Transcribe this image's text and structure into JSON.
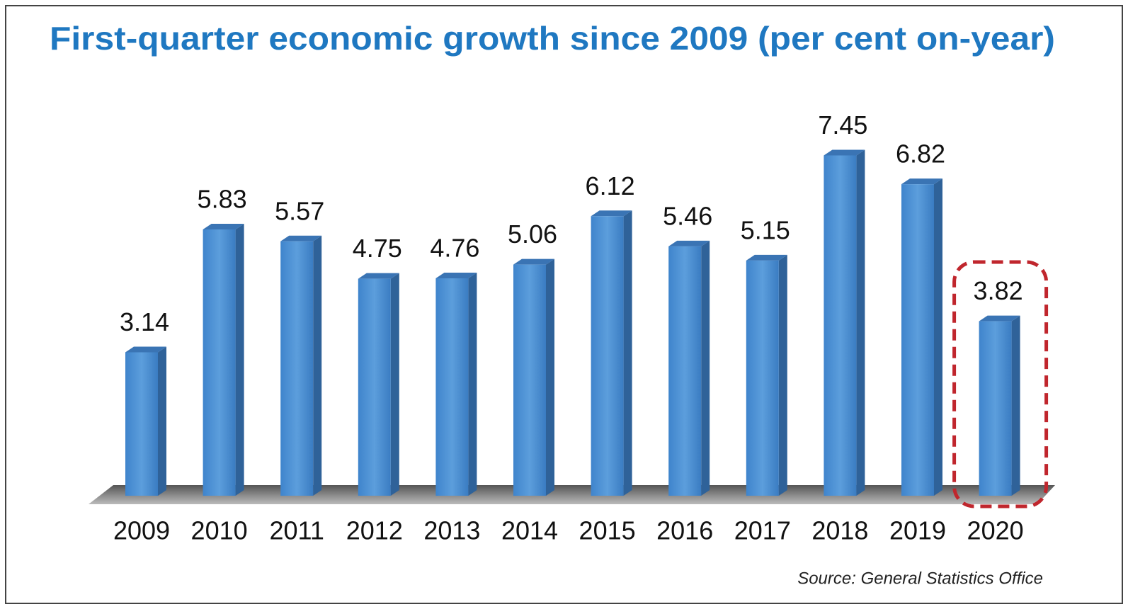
{
  "chart_data": {
    "type": "bar",
    "title": "First-quarter economic growth since 2009 (per cent on-year)",
    "categories": [
      "2009",
      "2010",
      "2011",
      "2012",
      "2013",
      "2014",
      "2015",
      "2016",
      "2017",
      "2018",
      "2019",
      "2020"
    ],
    "values": [
      3.14,
      5.83,
      5.57,
      4.75,
      4.76,
      5.06,
      6.12,
      5.46,
      5.15,
      7.45,
      6.82,
      3.82
    ],
    "color": "#4a8fd3",
    "source": "Source: General Statistics Office"
  }
}
